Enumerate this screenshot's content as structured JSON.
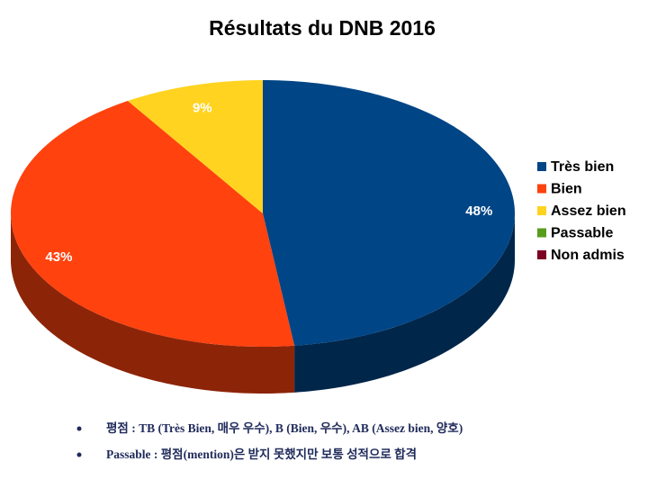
{
  "chart_data": {
    "type": "pie",
    "title": "Résultats du DNB 2016",
    "categories": [
      "Très bien",
      "Bien",
      "Assez bien",
      "Passable",
      "Non admis"
    ],
    "values": [
      48,
      43,
      9,
      0,
      0
    ],
    "value_labels": [
      "48%",
      "43%",
      "9%",
      null,
      null
    ],
    "colors": [
      "#004586",
      "#ff420e",
      "#ffd320",
      "#579d1c",
      "#7e0021"
    ],
    "legend": "right"
  },
  "notes": [
    "평점 : TB (Très Bien, 매우 우수), B (Bien, 우수), AB (Assez bien, 양호)",
    "Passable : 평점(mention)은 받지 못했지만 보통 성적으로 합격"
  ]
}
